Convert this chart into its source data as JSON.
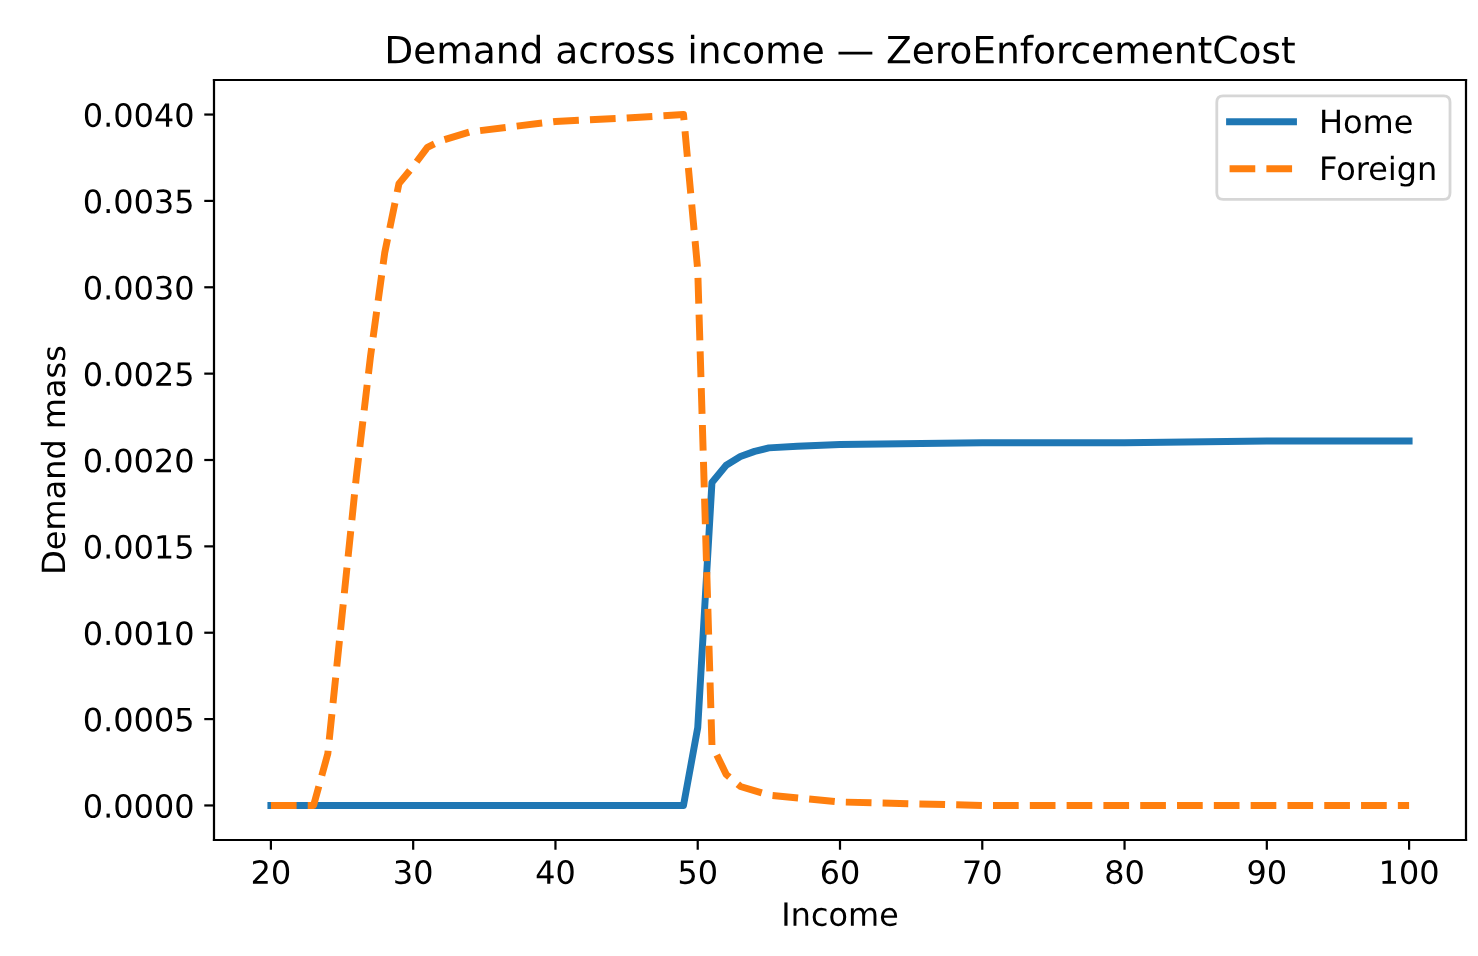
{
  "chart_data": {
    "type": "line",
    "title": "Demand across income — ZeroEnforcementCost",
    "xlabel": "Income",
    "ylabel": "Demand mass",
    "series": [
      {
        "name": "Home",
        "color": "#1f77b4",
        "line_style": "solid",
        "x": [
          20,
          30,
          40,
          49,
          50,
          51,
          52,
          53,
          54,
          55,
          57,
          60,
          70,
          80,
          90,
          100
        ],
        "values": [
          0,
          0,
          0,
          0,
          0.00045,
          0.00187,
          0.00197,
          0.00202,
          0.00205,
          0.00207,
          0.00208,
          0.00209,
          0.0021,
          0.0021,
          0.00211,
          0.00211
        ]
      },
      {
        "name": "Foreign",
        "color": "#ff7f0e",
        "line_style": "dashed",
        "x": [
          20,
          23,
          24,
          25,
          26,
          27,
          28,
          29,
          30,
          31,
          32,
          34,
          37,
          40,
          45,
          49,
          50,
          51,
          52,
          53,
          55,
          60,
          70,
          80,
          90,
          100
        ],
        "values": [
          0,
          0,
          0.0003,
          0.0011,
          0.0019,
          0.0026,
          0.0032,
          0.0036,
          0.0037,
          0.00381,
          0.00385,
          0.0039,
          0.00393,
          0.00396,
          0.00398,
          0.004,
          0.0031,
          0.00035,
          0.00018,
          0.00011,
          6e-05,
          2e-05,
          0,
          0,
          0,
          0
        ]
      }
    ],
    "xlim": [
      16,
      104
    ],
    "xticks": [
      20,
      30,
      40,
      50,
      60,
      70,
      80,
      90,
      100
    ],
    "ylim": [
      -0.0002,
      0.0042
    ],
    "yticks": [
      {
        "value": 0,
        "label": "0.0000"
      },
      {
        "value": 0.0005,
        "label": "0.0005"
      },
      {
        "value": 0.001,
        "label": "0.0010"
      },
      {
        "value": 0.0015,
        "label": "0.0015"
      },
      {
        "value": 0.002,
        "label": "0.0020"
      },
      {
        "value": 0.0025,
        "label": "0.0025"
      },
      {
        "value": 0.003,
        "label": "0.0030"
      },
      {
        "value": 0.0035,
        "label": "0.0035"
      },
      {
        "value": 0.004,
        "label": "0.0040"
      }
    ],
    "legend": "top right",
    "grid": false
  }
}
